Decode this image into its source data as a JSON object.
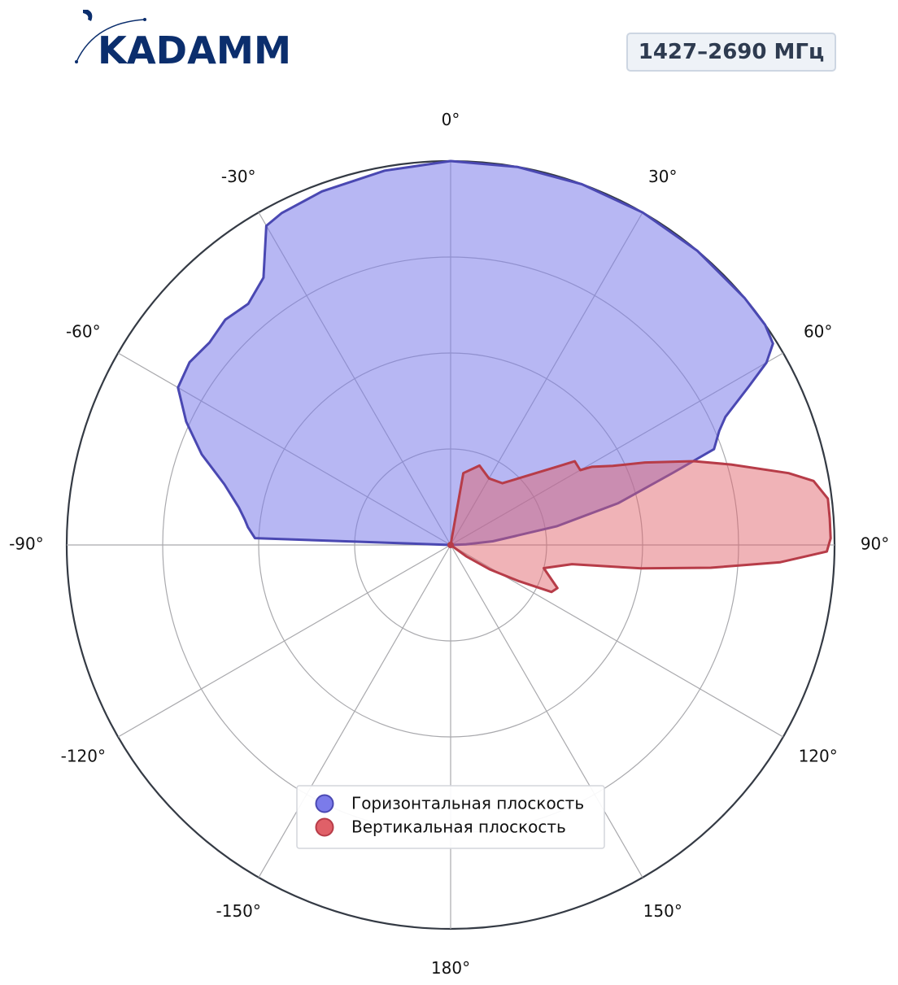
{
  "brand": {
    "logo_text": "KADAMM"
  },
  "header": {
    "frequency_label": "1427–2690 МГц"
  },
  "chart_data": {
    "type": "polar",
    "theta_zero": "top",
    "theta_direction": "clockwise",
    "angle_ticks": [
      "0°",
      "30°",
      "60°",
      "90°",
      "120°",
      "150°",
      "180°",
      "-150°",
      "-120°",
      "-90°",
      "-60°",
      "-30°"
    ],
    "radial_range": [
      0,
      1
    ],
    "radial_gridlines": [
      0.25,
      0.5,
      0.75,
      1
    ],
    "grid": true,
    "legend_position": "bottom-center",
    "series": [
      {
        "name": "Горизонтальная плоскость",
        "color": "#7b7bea",
        "stroke": "#4a48b2",
        "fill_opacity": 0.55,
        "points": [
          {
            "theta": 0,
            "r": 1.0
          },
          {
            "theta": 10,
            "r": 1.0
          },
          {
            "theta": 20,
            "r": 1.0
          },
          {
            "theta": 30,
            "r": 1.0
          },
          {
            "theta": 40,
            "r": 1.0
          },
          {
            "theta": 50,
            "r": 1.0
          },
          {
            "theta": 55,
            "r": 1.0
          },
          {
            "theta": 58,
            "r": 0.99
          },
          {
            "theta": 60,
            "r": 0.95
          },
          {
            "theta": 62,
            "r": 0.88
          },
          {
            "theta": 65,
            "r": 0.79
          },
          {
            "theta": 67,
            "r": 0.76
          },
          {
            "theta": 70,
            "r": 0.73
          },
          {
            "theta": 72,
            "r": 0.61
          },
          {
            "theta": 76,
            "r": 0.45
          },
          {
            "theta": 80,
            "r": 0.28
          },
          {
            "theta": 85,
            "r": 0.11
          },
          {
            "theta": 88,
            "r": 0.04
          },
          {
            "theta": 90,
            "r": 0.0
          },
          {
            "theta": 180,
            "r": 0.0
          },
          {
            "theta": 270,
            "r": 0.0
          },
          {
            "theta": -88,
            "r": 0.51
          },
          {
            "theta": -85,
            "r": 0.53
          },
          {
            "theta": -83,
            "r": 0.54
          },
          {
            "theta": -80,
            "r": 0.56
          },
          {
            "theta": -75,
            "r": 0.61
          },
          {
            "theta": -70,
            "r": 0.69
          },
          {
            "theta": -65,
            "r": 0.76
          },
          {
            "theta": -60,
            "r": 0.82
          },
          {
            "theta": -55,
            "r": 0.83
          },
          {
            "theta": -50,
            "r": 0.82
          },
          {
            "theta": -45,
            "r": 0.83
          },
          {
            "theta": -40,
            "r": 0.82
          },
          {
            "theta": -35,
            "r": 0.85
          },
          {
            "theta": -30,
            "r": 0.96
          },
          {
            "theta": -27,
            "r": 0.97
          },
          {
            "theta": -20,
            "r": 0.98
          },
          {
            "theta": -10,
            "r": 0.99
          }
        ]
      },
      {
        "name": "Вертикальная плоскость",
        "color": "#e06068",
        "stroke": "#b73c48",
        "fill_opacity": 0.48,
        "points": [
          {
            "theta": -25,
            "r": 0.0
          },
          {
            "theta": 0,
            "r": 0.0
          },
          {
            "theta": 10,
            "r": 0.19
          },
          {
            "theta": 20,
            "r": 0.22
          },
          {
            "theta": 30,
            "r": 0.2
          },
          {
            "theta": 40,
            "r": 0.21
          },
          {
            "theta": 48,
            "r": 0.27
          },
          {
            "theta": 54,
            "r": 0.35
          },
          {
            "theta": 56,
            "r": 0.39
          },
          {
            "theta": 60,
            "r": 0.39
          },
          {
            "theta": 61,
            "r": 0.42
          },
          {
            "theta": 64,
            "r": 0.47
          },
          {
            "theta": 67,
            "r": 0.55
          },
          {
            "theta": 71,
            "r": 0.67
          },
          {
            "theta": 74,
            "r": 0.76
          },
          {
            "theta": 78,
            "r": 0.9
          },
          {
            "theta": 80,
            "r": 0.96
          },
          {
            "theta": 83,
            "r": 0.99
          },
          {
            "theta": 86,
            "r": 0.99
          },
          {
            "theta": 89,
            "r": 0.99
          },
          {
            "theta": 91,
            "r": 0.98
          },
          {
            "theta": 93,
            "r": 0.86
          },
          {
            "theta": 95,
            "r": 0.68
          },
          {
            "theta": 97,
            "r": 0.5
          },
          {
            "theta": 99,
            "r": 0.32
          },
          {
            "theta": 104,
            "r": 0.25
          },
          {
            "theta": 112,
            "r": 0.3
          },
          {
            "theta": 115,
            "r": 0.29
          },
          {
            "theta": 118,
            "r": 0.2
          },
          {
            "theta": 122,
            "r": 0.12
          },
          {
            "theta": 126,
            "r": 0.05
          },
          {
            "theta": 130,
            "r": 0.0
          }
        ]
      }
    ]
  }
}
